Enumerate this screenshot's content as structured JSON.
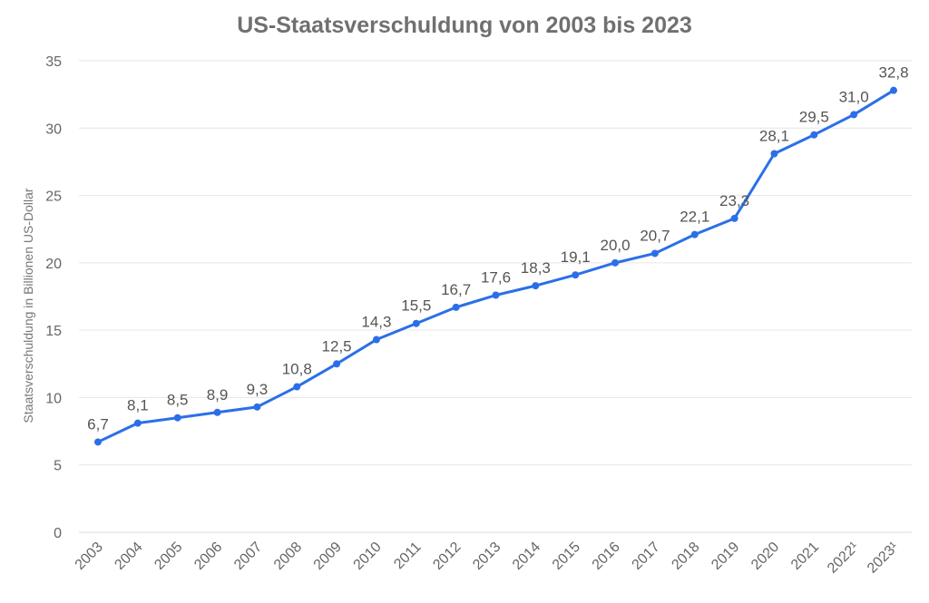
{
  "chart_data": {
    "type": "line",
    "title": "US-Staatsverschuldung von 2003 bis 2023",
    "xlabel": "",
    "ylabel": "Staatsverschuldung in Billionen US-Dollar",
    "categories": [
      "2003",
      "2004",
      "2005",
      "2006",
      "2007",
      "2008",
      "2009",
      "2010",
      "2011",
      "2012",
      "2013",
      "2014",
      "2015",
      "2016",
      "2017",
      "2018",
      "2019",
      "2020",
      "2021",
      "2022¹",
      "2023¹"
    ],
    "values": [
      6.7,
      8.1,
      8.5,
      8.9,
      9.3,
      10.8,
      12.5,
      14.3,
      15.5,
      16.7,
      17.6,
      18.3,
      19.1,
      20.0,
      20.7,
      22.1,
      23.3,
      28.1,
      29.5,
      31.0,
      32.8
    ],
    "data_labels": [
      "6,7",
      "8,1",
      "8,5",
      "8,9",
      "9,3",
      "10,8",
      "12,5",
      "14,3",
      "15,5",
      "16,7",
      "17,6",
      "18,3",
      "19,1",
      "20,0",
      "20,7",
      "22,1",
      "23,3",
      "28,1",
      "29,5",
      "31,0",
      "32,8"
    ],
    "yticks": [
      "0",
      "5",
      "10",
      "15",
      "20",
      "25",
      "30",
      "35"
    ],
    "ylim": [
      0,
      35
    ],
    "grid": true,
    "line_color": "#2b6fe8"
  }
}
